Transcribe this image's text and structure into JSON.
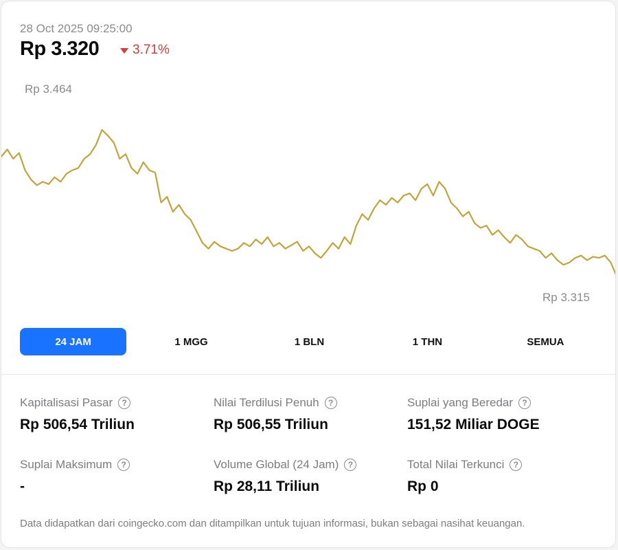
{
  "header": {
    "timestamp": "28 Oct 2025 09:25:00",
    "price": "Rp 3.320",
    "change": "3.71%",
    "change_direction": "down",
    "change_color": "#d93a3a"
  },
  "chart_data": {
    "type": "line",
    "series": [
      {
        "color": "#c2a53a",
        "values": [
          3420,
          3426,
          3418,
          3423,
          3408,
          3400,
          3395,
          3398,
          3396,
          3402,
          3398,
          3405,
          3408,
          3410,
          3418,
          3422,
          3430,
          3443,
          3438,
          3432,
          3418,
          3422,
          3410,
          3405,
          3415,
          3408,
          3406,
          3380,
          3385,
          3372,
          3378,
          3370,
          3365,
          3355,
          3345,
          3340,
          3346,
          3342,
          3340,
          3338,
          3340,
          3345,
          3342,
          3348,
          3344,
          3350,
          3342,
          3345,
          3340,
          3343,
          3346,
          3338,
          3342,
          3336,
          3332,
          3338,
          3345,
          3340,
          3350,
          3344,
          3360,
          3370,
          3365,
          3375,
          3382,
          3378,
          3384,
          3380,
          3386,
          3388,
          3382,
          3392,
          3396,
          3386,
          3398,
          3392,
          3380,
          3375,
          3368,
          3372,
          3362,
          3358,
          3360,
          3352,
          3356,
          3350,
          3345,
          3352,
          3348,
          3342,
          3340,
          3338,
          3332,
          3336,
          3330,
          3326,
          3328,
          3332,
          3334,
          3330,
          3333,
          3332,
          3334,
          3328,
          3316
        ]
      }
    ],
    "x_range": [
      "27 Oct 2025 09:25",
      "28 Oct 2025 09:25"
    ],
    "high_label": "Rp 3.464",
    "low_label": "Rp 3.315",
    "ylim": [
      3310,
      3468
    ],
    "grid": false,
    "legend": "none"
  },
  "tabs": [
    {
      "label": "24 JAM",
      "active": true
    },
    {
      "label": "1 MGG",
      "active": false
    },
    {
      "label": "1 BLN",
      "active": false
    },
    {
      "label": "1 THN",
      "active": false
    },
    {
      "label": "SEMUA",
      "active": false
    }
  ],
  "stats": [
    {
      "label": "Kapitalisasi Pasar",
      "value": "Rp 506,54 Triliun"
    },
    {
      "label": "Nilai Terdilusi Penuh",
      "value": "Rp 506,55 Triliun"
    },
    {
      "label": "Suplai yang Beredar",
      "value": "151,52 Miliar DOGE"
    },
    {
      "label": "Suplai Maksimum",
      "value": "-"
    },
    {
      "label": "Volume Global (24 Jam)",
      "value": "Rp 28,11 Triliun"
    },
    {
      "label": "Total Nilai Terkunci",
      "value": "Rp 0"
    }
  ],
  "info_icon": "question-circle-icon",
  "accent_color": "#1a73ff",
  "disclaimer": "Data didapatkan dari coingecko.com dan ditampilkan untuk tujuan informasi, bukan sebagai nasihat keuangan."
}
